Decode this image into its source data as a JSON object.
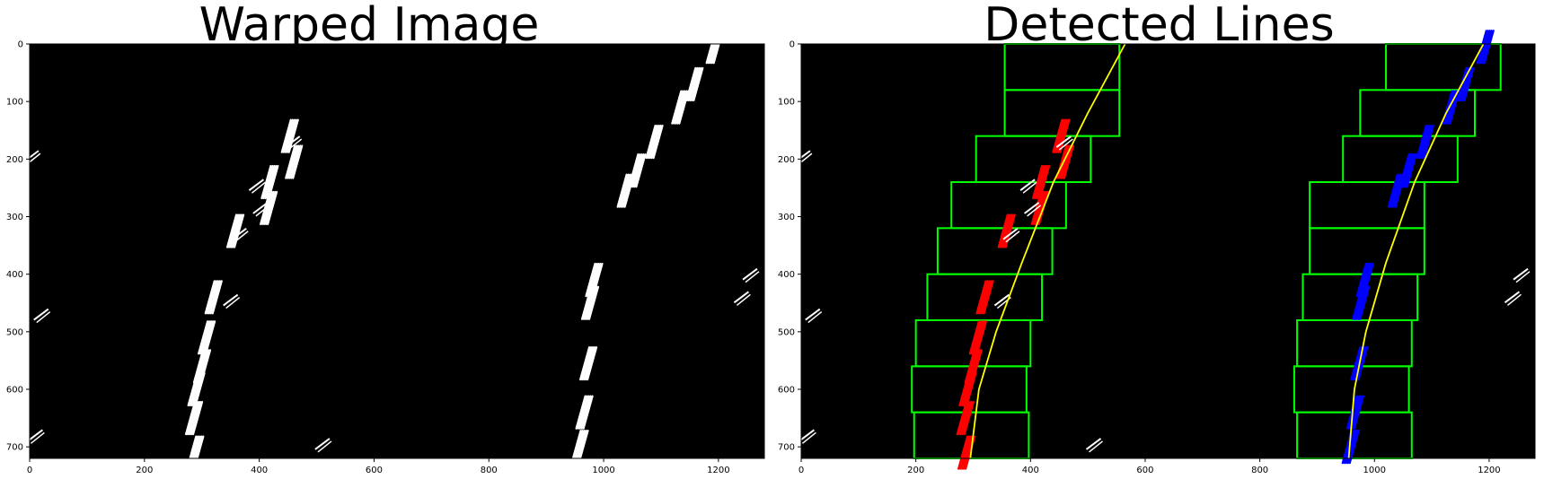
{
  "figure": {
    "left_title": "Warped Image",
    "right_title": "Detected Lines"
  },
  "axes": {
    "x_ticks": [
      "0",
      "200",
      "400",
      "600",
      "800",
      "1000",
      "1200"
    ],
    "y_ticks": [
      "0",
      "100",
      "200",
      "300",
      "400",
      "500",
      "600",
      "700"
    ],
    "x_values": [
      0,
      200,
      400,
      600,
      800,
      1000,
      1200
    ],
    "y_values": [
      0,
      100,
      200,
      300,
      400,
      500,
      600,
      700
    ],
    "xlim": [
      0,
      1280
    ],
    "ylim": [
      720,
      0
    ]
  },
  "colors": {
    "background": "#000000",
    "lane_pixels": "#ffffff",
    "left_lane": "#ff0000",
    "right_lane": "#0000ff",
    "windows": "#00ff00",
    "fit": "#ffff00"
  },
  "sliding_windows": {
    "left": [
      {
        "x1": 355,
        "y1": 0,
        "x2": 555,
        "y2": 80
      },
      {
        "x1": 355,
        "y1": 80,
        "x2": 555,
        "y2": 160
      },
      {
        "x1": 305,
        "y1": 160,
        "x2": 505,
        "y2": 240
      },
      {
        "x1": 262,
        "y1": 240,
        "x2": 462,
        "y2": 320
      },
      {
        "x1": 238,
        "y1": 320,
        "x2": 438,
        "y2": 400
      },
      {
        "x1": 220,
        "y1": 400,
        "x2": 420,
        "y2": 480
      },
      {
        "x1": 200,
        "y1": 480,
        "x2": 400,
        "y2": 560
      },
      {
        "x1": 193,
        "y1": 560,
        "x2": 393,
        "y2": 640
      },
      {
        "x1": 197,
        "y1": 640,
        "x2": 397,
        "y2": 720
      }
    ],
    "right": [
      {
        "x1": 1020,
        "y1": 0,
        "x2": 1220,
        "y2": 80
      },
      {
        "x1": 975,
        "y1": 80,
        "x2": 1175,
        "y2": 160
      },
      {
        "x1": 945,
        "y1": 160,
        "x2": 1145,
        "y2": 240
      },
      {
        "x1": 887,
        "y1": 240,
        "x2": 1087,
        "y2": 320
      },
      {
        "x1": 887,
        "y1": 320,
        "x2": 1087,
        "y2": 400
      },
      {
        "x1": 875,
        "y1": 400,
        "x2": 1075,
        "y2": 480
      },
      {
        "x1": 865,
        "y1": 480,
        "x2": 1065,
        "y2": 560
      },
      {
        "x1": 860,
        "y1": 560,
        "x2": 1060,
        "y2": 640
      },
      {
        "x1": 865,
        "y1": 640,
        "x2": 1065,
        "y2": 720
      }
    ]
  },
  "lane_segments": {
    "left": [
      {
        "x": 455,
        "y": 160
      },
      {
        "x": 462,
        "y": 205
      },
      {
        "x": 420,
        "y": 240
      },
      {
        "x": 418,
        "y": 285
      },
      {
        "x": 360,
        "y": 325
      },
      {
        "x": 322,
        "y": 440
      },
      {
        "x": 310,
        "y": 510
      },
      {
        "x": 302,
        "y": 560
      },
      {
        "x": 292,
        "y": 600
      },
      {
        "x": 288,
        "y": 650
      },
      {
        "x": 290,
        "y": 710
      }
    ],
    "right": [
      {
        "x": 1195,
        "y": 5
      },
      {
        "x": 1160,
        "y": 70
      },
      {
        "x": 1135,
        "y": 110
      },
      {
        "x": 1090,
        "y": 170
      },
      {
        "x": 1060,
        "y": 220
      },
      {
        "x": 1040,
        "y": 255
      },
      {
        "x": 985,
        "y": 410
      },
      {
        "x": 978,
        "y": 450
      },
      {
        "x": 975,
        "y": 555
      },
      {
        "x": 968,
        "y": 640
      },
      {
        "x": 960,
        "y": 700
      }
    ],
    "noise": [
      {
        "x": 458,
        "y": 170
      },
      {
        "x": 395,
        "y": 245
      },
      {
        "x": 402,
        "y": 285
      },
      {
        "x": 365,
        "y": 330
      },
      {
        "x": 350,
        "y": 445
      },
      {
        "x": 510,
        "y": 695
      },
      {
        "x": 10,
        "y": 680
      },
      {
        "x": 20,
        "y": 470
      },
      {
        "x": 1255,
        "y": 400
      },
      {
        "x": 1240,
        "y": 440
      },
      {
        "x": 3,
        "y": 195
      }
    ]
  },
  "polyfit": {
    "left": [
      {
        "x": 565,
        "y": 0
      },
      {
        "x": 500,
        "y": 120
      },
      {
        "x": 440,
        "y": 240
      },
      {
        "x": 385,
        "y": 380
      },
      {
        "x": 340,
        "y": 500
      },
      {
        "x": 310,
        "y": 600
      },
      {
        "x": 295,
        "y": 720
      }
    ],
    "right": [
      {
        "x": 1190,
        "y": 0
      },
      {
        "x": 1125,
        "y": 120
      },
      {
        "x": 1070,
        "y": 240
      },
      {
        "x": 1020,
        "y": 380
      },
      {
        "x": 985,
        "y": 500
      },
      {
        "x": 965,
        "y": 600
      },
      {
        "x": 955,
        "y": 720
      }
    ]
  }
}
